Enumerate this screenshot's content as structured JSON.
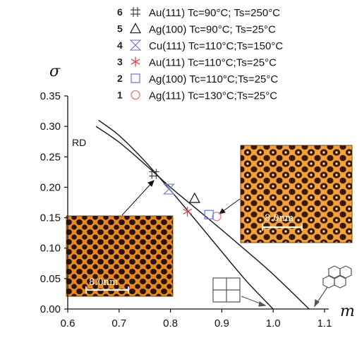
{
  "chart_data": {
    "type": "line",
    "title": "",
    "xlabel": "m",
    "ylabel": "σ",
    "xlim": [
      0.6,
      1.1
    ],
    "ylim": [
      0.0,
      0.35
    ],
    "xticks": [
      "0.6",
      "0.7",
      "0.8",
      "0.9",
      "1.0",
      "1.1"
    ],
    "yticks": [
      "0.00",
      "0.05",
      "0.10",
      "0.15",
      "0.20",
      "0.25",
      "0.30",
      "0.35"
    ],
    "series": [
      {
        "line": "square-lattice boundary",
        "x": [
          0.66,
          0.7,
          0.75,
          0.8,
          0.85,
          0.9,
          0.95,
          1.0
        ],
        "y": [
          0.31,
          0.285,
          0.243,
          0.195,
          0.145,
          0.094,
          0.044,
          0.0
        ]
      },
      {
        "line": "hexagonal-lattice boundary",
        "x": [
          0.655,
          0.7,
          0.75,
          0.8,
          0.85,
          0.9,
          0.95,
          1.0,
          1.07
        ],
        "y": [
          0.3,
          0.274,
          0.238,
          0.2,
          0.165,
          0.13,
          0.094,
          0.057,
          0.0
        ]
      }
    ],
    "points": [
      {
        "num": "1",
        "label": "Ag(111) Tc=130°C;Ts=25°C",
        "x": 0.89,
        "y": 0.152,
        "marker": "circle",
        "color": "#e8787a"
      },
      {
        "num": "2",
        "label": "Ag(100) Tc=110°C;Ts=25°C",
        "x": 0.875,
        "y": 0.155,
        "marker": "square",
        "color": "#6f7fd6"
      },
      {
        "num": "3",
        "label": "Au(111) Tc=110°C;Ts=25°C",
        "x": 0.833,
        "y": 0.16,
        "marker": "star",
        "color": "#d84a52"
      },
      {
        "num": "4",
        "label": "Cu(111) Tc=110°C;Ts=150°C",
        "x": 0.797,
        "y": 0.197,
        "marker": "hourglass",
        "color": "#7a8ac8"
      },
      {
        "num": "5",
        "label": "Ag(100) Tc=90°C; Ts=25°C",
        "x": 0.847,
        "y": 0.182,
        "marker": "triangle",
        "color": "#222222"
      },
      {
        "num": "6",
        "label": "Au(111) Tc=90°C; Ts=250°C",
        "x": 0.768,
        "y": 0.222,
        "marker": "hash",
        "color": "#333333"
      }
    ],
    "annotations": {
      "rd": "RD",
      "scalebar_left": "8.0nm",
      "scalebar_right": "8.0nm"
    },
    "legend": "top"
  }
}
